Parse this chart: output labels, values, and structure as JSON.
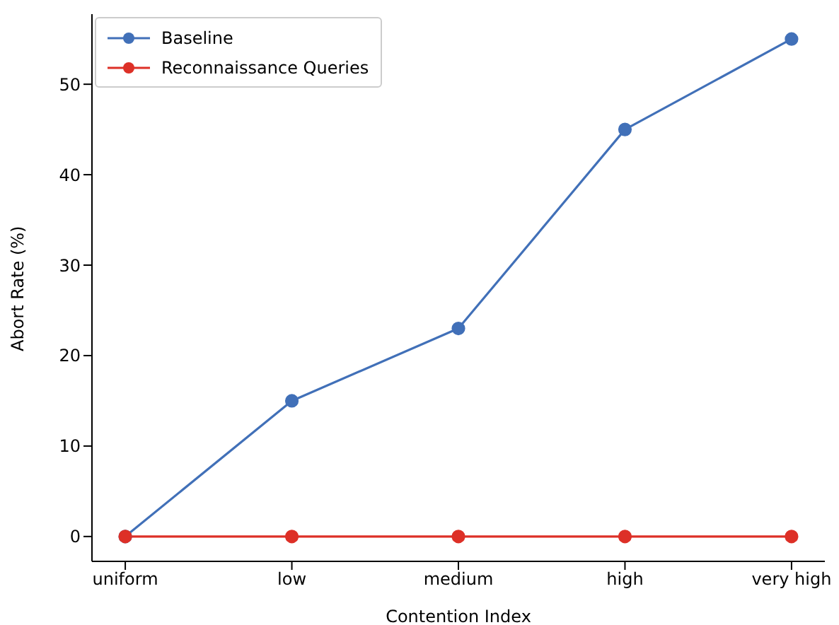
{
  "chart_data": {
    "type": "line",
    "xlabel": "Contention Index",
    "ylabel": "Abort Rate (%)",
    "categories": [
      "uniform",
      "low",
      "medium",
      "high",
      "very high"
    ],
    "series": [
      {
        "name": "Baseline",
        "color": "#4170b8",
        "values": [
          0,
          15,
          23,
          45,
          55
        ]
      },
      {
        "name": "Reconnaissance Queries",
        "color": "#dd3027",
        "values": [
          0,
          0,
          0,
          0,
          0
        ]
      }
    ],
    "ylim": [
      -2.75,
      57.75
    ],
    "yticks": [
      0,
      10,
      20,
      30,
      40,
      50
    ],
    "legend": "top left",
    "marker": "circle",
    "line_style": "solid"
  }
}
